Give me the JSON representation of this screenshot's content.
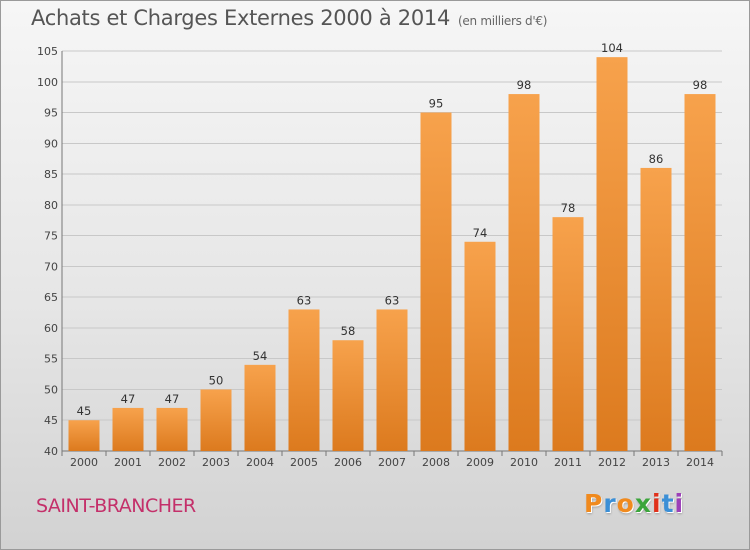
{
  "page": {
    "title": "Achats et Charges Externes 2000 à 2014",
    "subtitle": "(en milliers d'€)",
    "place": "SAINT-BRANCHER",
    "logo_text": "Proxiti"
  },
  "colors": {
    "bar_top": "#f7a24c",
    "bar_bottom": "#dc7a1e",
    "grid": "#c8c8c8",
    "place": "#c4306a",
    "logo": [
      "#f08a1e",
      "#3b8fd6",
      "#f08a1e",
      "#3ba53b",
      "#e0311b",
      "#3b8fd6",
      "#9c3fb8"
    ]
  },
  "chart_data": {
    "type": "bar",
    "title": "Achats et Charges Externes 2000 à 2014",
    "subtitle": "(en milliers d'€)",
    "xlabel": "",
    "ylabel": "",
    "categories": [
      "2000",
      "2001",
      "2002",
      "2003",
      "2004",
      "2005",
      "2006",
      "2007",
      "2008",
      "2009",
      "2010",
      "2011",
      "2012",
      "2013",
      "2014"
    ],
    "values": [
      45,
      47,
      47,
      50,
      54,
      63,
      58,
      63,
      95,
      74,
      98,
      78,
      104,
      86,
      98
    ],
    "ylim": [
      40,
      105
    ],
    "yticks": [
      40,
      45,
      50,
      55,
      60,
      65,
      70,
      75,
      80,
      85,
      90,
      95,
      100,
      105
    ],
    "grid": true,
    "legend": "none"
  }
}
